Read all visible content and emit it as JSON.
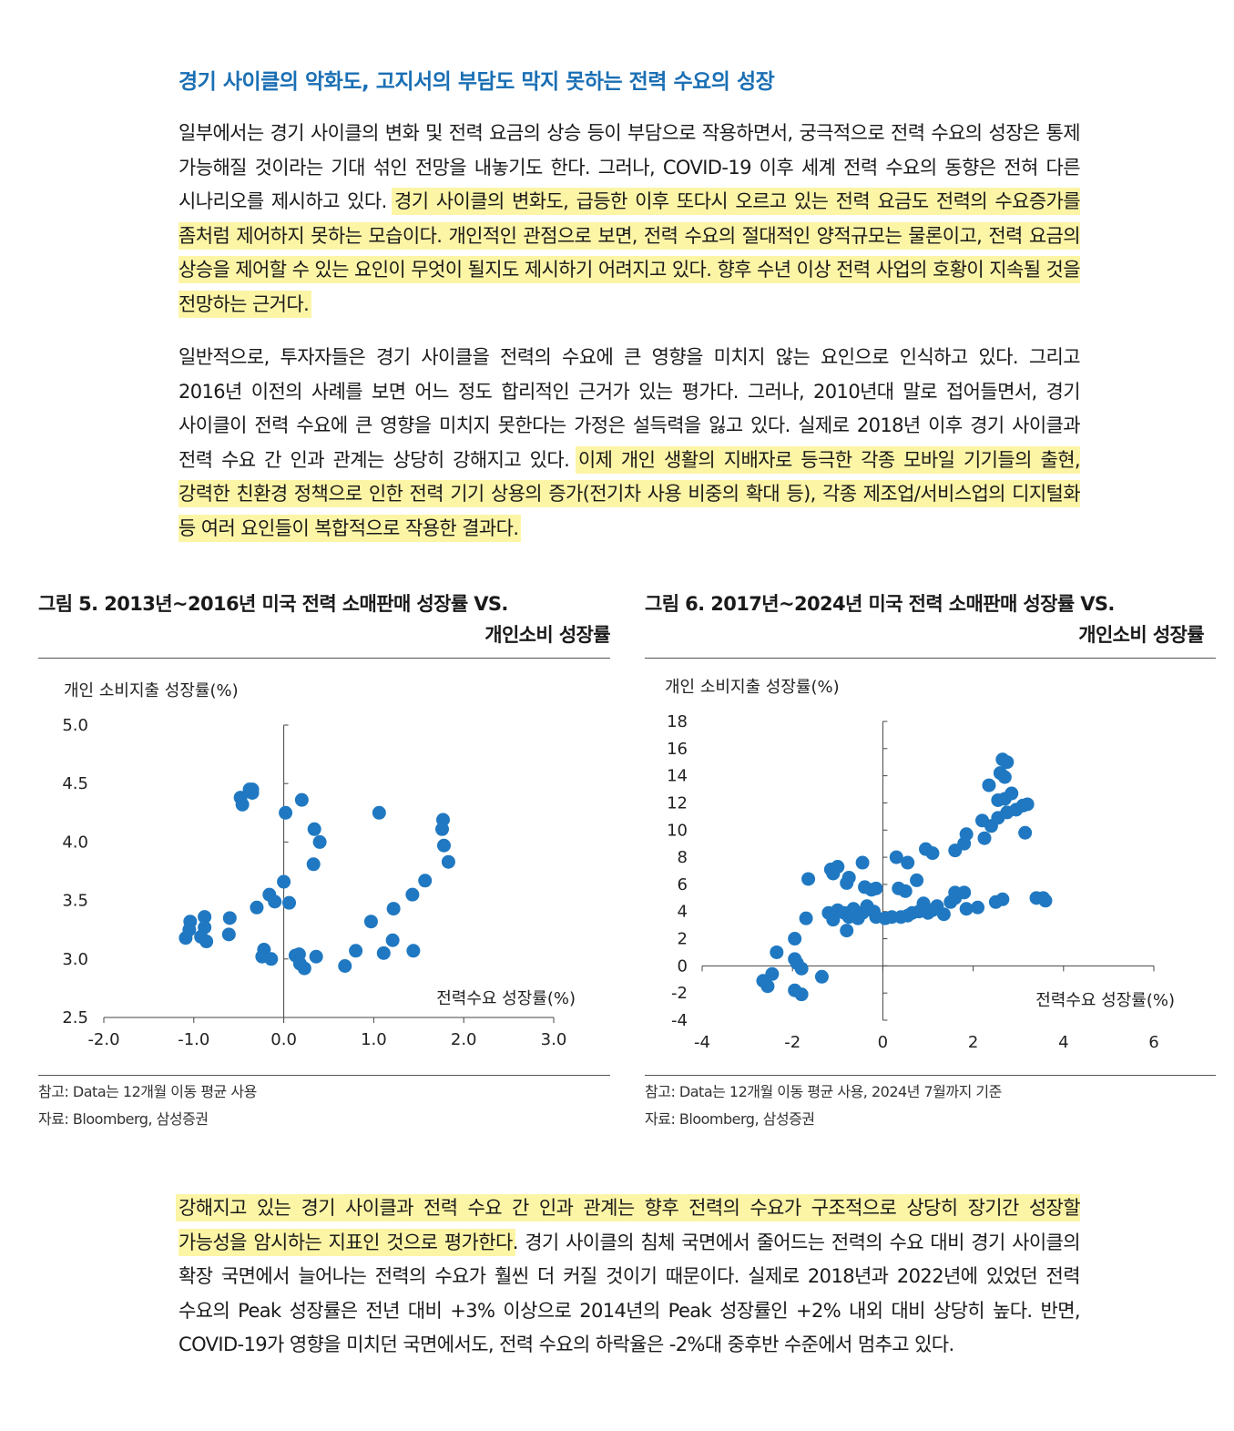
{
  "heading": "경기 사이클의 악화도, 고지서의 부담도 막지 못하는 전력 수요의 성장",
  "p1": {
    "plain": "일부에서는 경기 사이클의 변화 및 전력 요금의 상승 등이 부담으로 작용하면서, 궁극적으로 전력 수요의 성장은 통제 가능해질 것이라는 기대 섞인 전망을 내놓기도 한다. 그러나, COVID-19 이후 세계 전력 수요의 동향은 전혀 다른 시나리오를 제시하고 있다. ",
    "highlight": "경기 사이클의 변화도, 급등한 이후 또다시 오르고 있는 전력 요금도 전력의 수요증가를 좀처럼 제어하지 못하는 모습이다. 개인적인 관점으로 보면, 전력 수요의 절대적인 양적규모는 물론이고, 전력 요금의 상승을 제어할 수 있는 요인이 무엇이 될지도 제시하기 어려지고 있다. 향후 수년 이상 전력 사업의 호황이 지속될 것을 전망하는 근거다."
  },
  "p2": {
    "plain": "일반적으로, 투자자들은 경기 사이클을 전력의 수요에 큰 영향을 미치지 않는 요인으로 인식하고 있다. 그리고 2016년 이전의 사례를 보면 어느 정도 합리적인 근거가 있는 평가다. 그러나, 2010년대 말로 접어들면서, 경기 사이클이 전력 수요에 큰 영향을 미치지 못한다는 가정은 설득력을 잃고 있다. 실제로 2018년 이후 경기 사이클과 전력 수요 간 인과 관계는 상당히 강해지고 있다. ",
    "highlight": "이제 개인 생활의 지배자로 등극한 각종 모바일 기기들의 출현, 강력한 친환경 정책으로 인한 전력 기기 상용의 증가(전기차 사용 비중의 확대 등), 각종 제조업/서비스업의 디지털화 등 여러 요인들이 복합적으로 작용한 결과다."
  },
  "fig5": {
    "title_line1": "그림 5. 2013년~2016년 미국 전력 소매판매 성장률 VS.",
    "title_line2": "개인소비 성장률",
    "note": "참고: Data는 12개월 이동 평균 사용",
    "source": "자료: Bloomberg, 삼성증권"
  },
  "fig6": {
    "title_line1": "그림 6. 2017년~2024년 미국 전력 소매판매 성장률 VS.",
    "title_line2": "개인소비 성장률",
    "note": "참고: Data는 12개월 이동 평균 사용, 2024년 7월까지 기준",
    "source": "자료: Bloomberg, 삼성증권"
  },
  "p3": {
    "highlight": "강해지고 있는 경기 사이클과 전력 수요 간 인과 관계는 향후 전력의 수요가 구조적으로 상당히 장기간 성장할 가능성을 암시하는 지표인 것으로 평가한다",
    "plain": ". 경기 사이클의 침체 국면에서 줄어드는 전력의 수요 대비 경기 사이클의 확장 국면에서 늘어나는 전력의 수요가 훨씬 더 커질 것이기 때문이다. 실제로 2018년과 2022년에 있었던 전력 수요의 Peak 성장률은 전년 대비 +3% 이상으로 2014년의 Peak 성장률인 +2% 내외 대비 상당히 높다. 반면, COVID-19가 영향을 미치던 국면에서도, 전력 수요의 하락율은 -2%대 중후반 수준에서 멈추고 있다."
  },
  "chart_data": [
    {
      "type": "scatter",
      "id": "fig5",
      "xlabel": "전력수요 성장률(%)",
      "ylabel": "개인 소비지출 성장률(%)",
      "xlim": [
        -2.0,
        3.0
      ],
      "ylim": [
        2.5,
        5.0
      ],
      "xticks": [
        "-2.0",
        "-1.0",
        "0.0",
        "1.0",
        "2.0",
        "3.0"
      ],
      "yticks": [
        "2.5",
        "3.0",
        "3.5",
        "4.0",
        "4.5",
        "5.0"
      ],
      "color": "#1f78c1",
      "points": [
        [
          -0.48,
          4.38
        ],
        [
          -0.46,
          4.32
        ],
        [
          -0.38,
          4.45
        ],
        [
          -0.35,
          4.45
        ],
        [
          -0.35,
          4.42
        ],
        [
          0.02,
          4.25
        ],
        [
          0.2,
          4.36
        ],
        [
          0.34,
          4.11
        ],
        [
          0.4,
          4.0
        ],
        [
          0.33,
          3.81
        ],
        [
          1.06,
          4.25
        ],
        [
          1.77,
          4.19
        ],
        [
          1.76,
          4.11
        ],
        [
          1.78,
          3.97
        ],
        [
          1.83,
          3.83
        ],
        [
          1.57,
          3.67
        ],
        [
          1.43,
          3.55
        ],
        [
          1.22,
          3.43
        ],
        [
          0.97,
          3.32
        ],
        [
          1.21,
          3.16
        ],
        [
          1.11,
          3.05
        ],
        [
          1.44,
          3.07
        ],
        [
          -0.88,
          3.36
        ],
        [
          -1.04,
          3.32
        ],
        [
          -0.88,
          3.27
        ],
        [
          -1.05,
          3.25
        ],
        [
          -0.92,
          3.19
        ],
        [
          -1.09,
          3.18
        ],
        [
          -0.86,
          3.15
        ],
        [
          -0.6,
          3.35
        ],
        [
          -0.61,
          3.21
        ],
        [
          -0.3,
          3.44
        ],
        [
          -0.16,
          3.55
        ],
        [
          -0.1,
          3.49
        ],
        [
          0.06,
          3.48
        ],
        [
          0.0,
          3.66
        ],
        [
          -0.22,
          3.08
        ],
        [
          -0.24,
          3.02
        ],
        [
          -0.14,
          3.0
        ],
        [
          0.13,
          3.03
        ],
        [
          0.17,
          3.04
        ],
        [
          0.18,
          2.96
        ],
        [
          0.23,
          2.92
        ],
        [
          0.36,
          3.02
        ],
        [
          0.68,
          2.94
        ],
        [
          0.8,
          3.07
        ]
      ]
    },
    {
      "type": "scatter",
      "id": "fig6",
      "xlabel": "전력수요 성장률(%)",
      "ylabel": "개인 소비지출 성장률(%)",
      "xlim": [
        -4,
        6
      ],
      "ylim": [
        -4,
        18
      ],
      "xticks": [
        "-4",
        "-2",
        "0",
        "2",
        "4",
        "6"
      ],
      "yticks": [
        "-4",
        "-2",
        "0",
        "2",
        "4",
        "6",
        "8",
        "10",
        "12",
        "14",
        "16",
        "18"
      ],
      "color": "#1f78c1",
      "points": [
        [
          -2.65,
          -1.1
        ],
        [
          -2.55,
          -1.5
        ],
        [
          -2.45,
          -0.6
        ],
        [
          -2.35,
          1.0
        ],
        [
          -1.95,
          2.0
        ],
        [
          -1.95,
          0.5
        ],
        [
          -1.9,
          0.2
        ],
        [
          -1.8,
          -0.2
        ],
        [
          -1.95,
          -1.8
        ],
        [
          -1.8,
          -2.1
        ],
        [
          -1.35,
          -0.8
        ],
        [
          -1.7,
          3.5
        ],
        [
          -1.65,
          6.4
        ],
        [
          -1.15,
          7.1
        ],
        [
          -1.1,
          6.8
        ],
        [
          -1.0,
          7.3
        ],
        [
          -0.75,
          6.5
        ],
        [
          -0.8,
          6.1
        ],
        [
          -0.45,
          7.6
        ],
        [
          -0.4,
          5.8
        ],
        [
          -0.25,
          5.6
        ],
        [
          -0.15,
          5.7
        ],
        [
          -1.2,
          3.9
        ],
        [
          -1.1,
          3.6
        ],
        [
          -1.1,
          3.4
        ],
        [
          -1.0,
          4.1
        ],
        [
          -0.85,
          3.9
        ],
        [
          -0.75,
          3.6
        ],
        [
          -0.8,
          2.6
        ],
        [
          -0.65,
          4.2
        ],
        [
          -0.55,
          3.5
        ],
        [
          -0.45,
          3.9
        ],
        [
          -0.35,
          4.4
        ],
        [
          -0.2,
          4.0
        ],
        [
          -0.15,
          3.6
        ],
        [
          0.05,
          3.5
        ],
        [
          0.2,
          3.6
        ],
        [
          0.4,
          3.6
        ],
        [
          0.55,
          3.7
        ],
        [
          0.65,
          3.9
        ],
        [
          0.8,
          4.0
        ],
        [
          0.9,
          4.6
        ],
        [
          1.0,
          3.9
        ],
        [
          1.1,
          4.1
        ],
        [
          1.2,
          4.4
        ],
        [
          1.35,
          3.8
        ],
        [
          1.5,
          4.7
        ],
        [
          1.6,
          5.0
        ],
        [
          1.85,
          4.2
        ],
        [
          2.1,
          4.3
        ],
        [
          2.5,
          4.7
        ],
        [
          2.65,
          4.9
        ],
        [
          3.4,
          5.0
        ],
        [
          3.55,
          5.0
        ],
        [
          3.6,
          4.8
        ],
        [
          0.35,
          5.7
        ],
        [
          0.5,
          5.5
        ],
        [
          0.75,
          6.3
        ],
        [
          0.3,
          8.0
        ],
        [
          0.55,
          7.6
        ],
        [
          0.95,
          8.6
        ],
        [
          1.1,
          8.3
        ],
        [
          1.6,
          8.5
        ],
        [
          1.8,
          9.0
        ],
        [
          1.85,
          9.7
        ],
        [
          1.6,
          5.4
        ],
        [
          1.8,
          5.4
        ],
        [
          2.2,
          10.7
        ],
        [
          2.25,
          9.4
        ],
        [
          2.4,
          10.3
        ],
        [
          2.55,
          10.9
        ],
        [
          2.35,
          13.3
        ],
        [
          2.55,
          12.2
        ],
        [
          2.7,
          12.3
        ],
        [
          2.75,
          11.3
        ],
        [
          2.85,
          12.7
        ],
        [
          2.95,
          11.5
        ],
        [
          3.1,
          11.8
        ],
        [
          3.2,
          11.9
        ],
        [
          3.15,
          9.8
        ],
        [
          2.6,
          14.2
        ],
        [
          2.65,
          15.2
        ],
        [
          2.75,
          15.0
        ],
        [
          2.7,
          13.9
        ]
      ]
    }
  ]
}
